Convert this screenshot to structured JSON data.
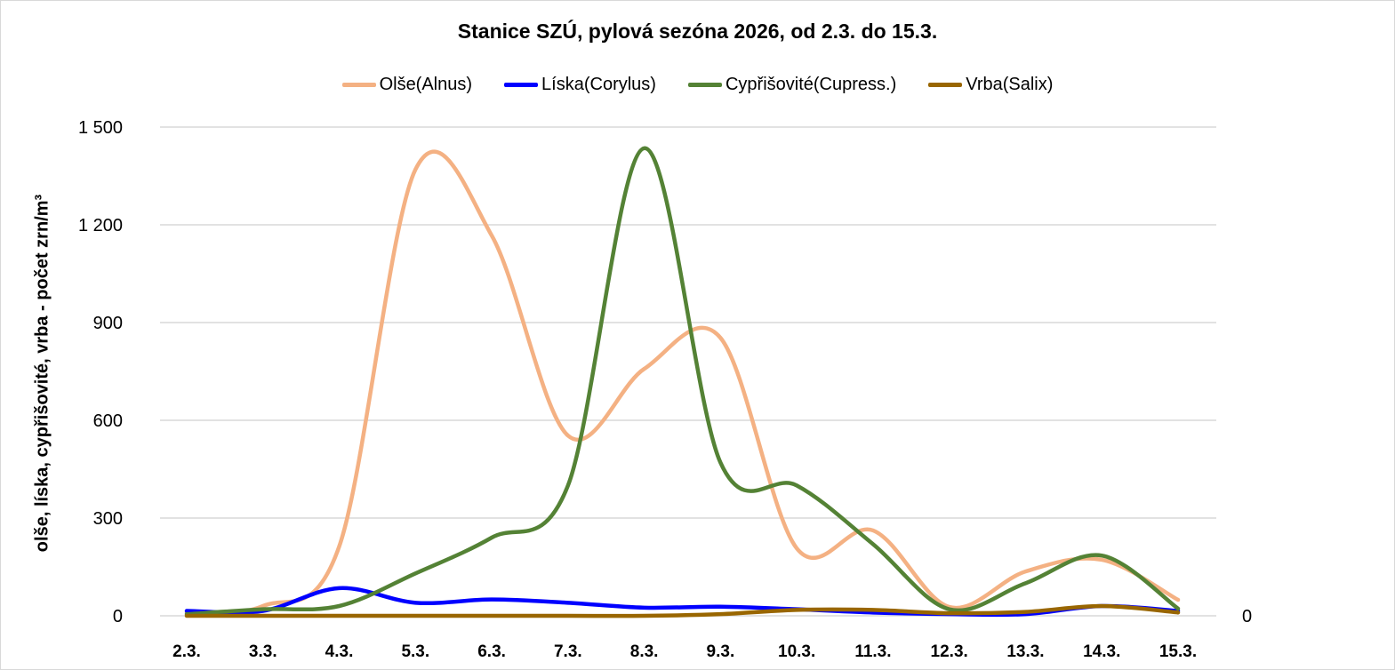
{
  "chart_data": {
    "type": "line",
    "title": "Stanice SZÚ, pylová sezóna 2026, od 2.3. do 15.3.",
    "xlabel": "",
    "ylabel": "olše, líska, cypřišovité, vrba - počet zrn/m³",
    "ylim": [
      0,
      1500
    ],
    "yticks": [
      0,
      300,
      600,
      900,
      1200,
      1500
    ],
    "ytick_labels": [
      "0",
      "300",
      "600",
      "900",
      "1 200",
      "1 500"
    ],
    "y2_tick_labels": [
      "0"
    ],
    "grid": true,
    "legend_position": "top",
    "categories": [
      "2.3.",
      "3.3.",
      "4.3.",
      "5.3.",
      "6.3.",
      "7.3.",
      "8.3.",
      "9.3.",
      "10.3.",
      "11.3.",
      "12.3.",
      "13.3.",
      "14.3.",
      "15.3."
    ],
    "series": [
      {
        "name": "Olše(Alnus)",
        "color": "#F4B183",
        "values": [
          10,
          30,
          213,
          1370,
          1167,
          553,
          758,
          853,
          207,
          262,
          27,
          136,
          172,
          49
        ]
      },
      {
        "name": "Líska(Corylus)",
        "color": "#0000FF",
        "values": [
          15,
          15,
          85,
          40,
          50,
          40,
          25,
          28,
          20,
          10,
          5,
          5,
          30,
          15
        ]
      },
      {
        "name": "Cypřišovité(Cupress.)",
        "color": "#548235",
        "values": [
          5,
          20,
          30,
          130,
          240,
          400,
          1435,
          470,
          400,
          220,
          20,
          100,
          185,
          22
        ]
      },
      {
        "name": "Vrba(Salix)",
        "color": "#996600",
        "values": [
          0,
          0,
          0,
          0,
          0,
          0,
          0,
          5,
          18,
          18,
          8,
          12,
          30,
          10
        ]
      }
    ]
  }
}
